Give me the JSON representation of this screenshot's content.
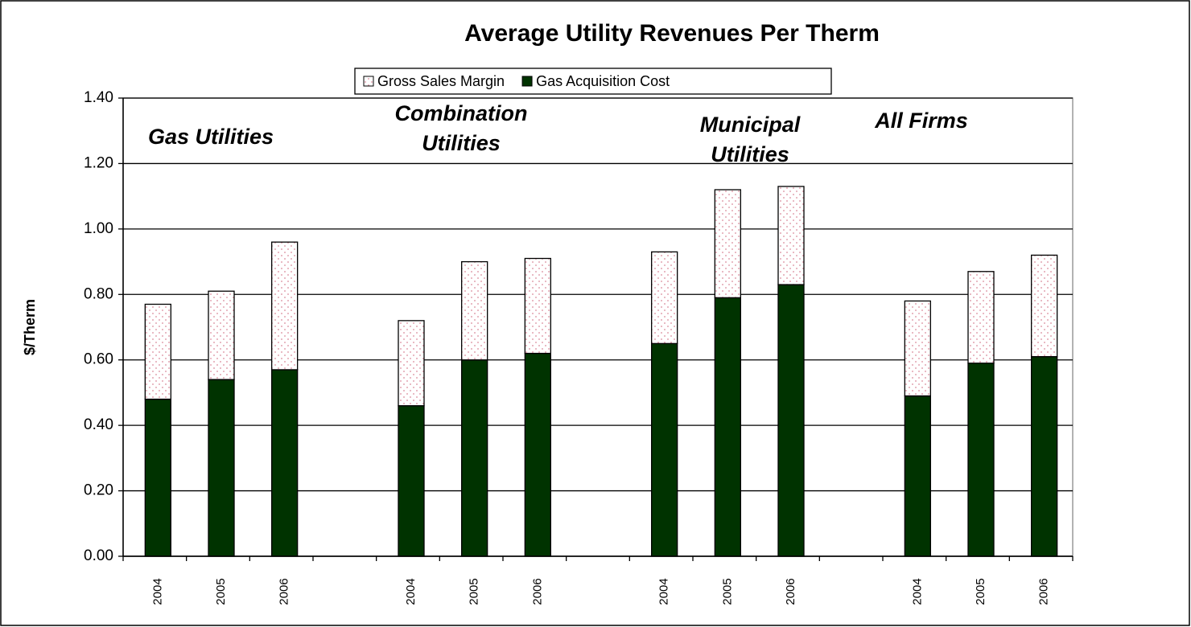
{
  "chart_data": {
    "type": "stacked-bar",
    "title": "Average Utility  Revenues Per Therm",
    "y_label": "$/Therm",
    "categories": [
      "2004",
      "2005",
      "2006",
      null,
      "2004",
      "2005",
      "2006",
      null,
      "2004",
      "2005",
      "2006",
      null,
      "2004",
      "2005",
      "2006"
    ],
    "series": [
      {
        "name": "Gas Acquisition Cost",
        "color": "#003300",
        "values": [
          0.48,
          0.54,
          0.57,
          null,
          0.46,
          0.6,
          0.62,
          null,
          0.65,
          0.79,
          0.83,
          null,
          0.49,
          0.59,
          0.61
        ]
      },
      {
        "name": "Gross Sales Margin",
        "color": "#ffffff",
        "pattern": "dots",
        "values": [
          0.29,
          0.27,
          0.39,
          null,
          0.26,
          0.3,
          0.29,
          null,
          0.28,
          0.33,
          0.3,
          null,
          0.29,
          0.28,
          0.31
        ]
      }
    ],
    "group_labels": [
      [
        "Gas Utilities"
      ],
      [
        "Combination",
        "Utilities"
      ],
      [
        "Municipal",
        "Utilities"
      ],
      [
        "All Firms"
      ]
    ],
    "ylim": [
      0,
      1.4
    ],
    "yticks": [
      {
        "value": 0,
        "label": "0.00"
      },
      {
        "value": 0.2,
        "label": "0.20"
      },
      {
        "value": 0.4,
        "label": "0.40"
      },
      {
        "value": 0.6,
        "label": "0.60"
      },
      {
        "value": 0.8,
        "label": "0.80"
      },
      {
        "value": 1.0,
        "label": "1.00"
      },
      {
        "value": 1.2,
        "label": "1.20"
      },
      {
        "value": 1.4,
        "label": "1.40"
      }
    ],
    "grid": true,
    "legend": "top"
  }
}
